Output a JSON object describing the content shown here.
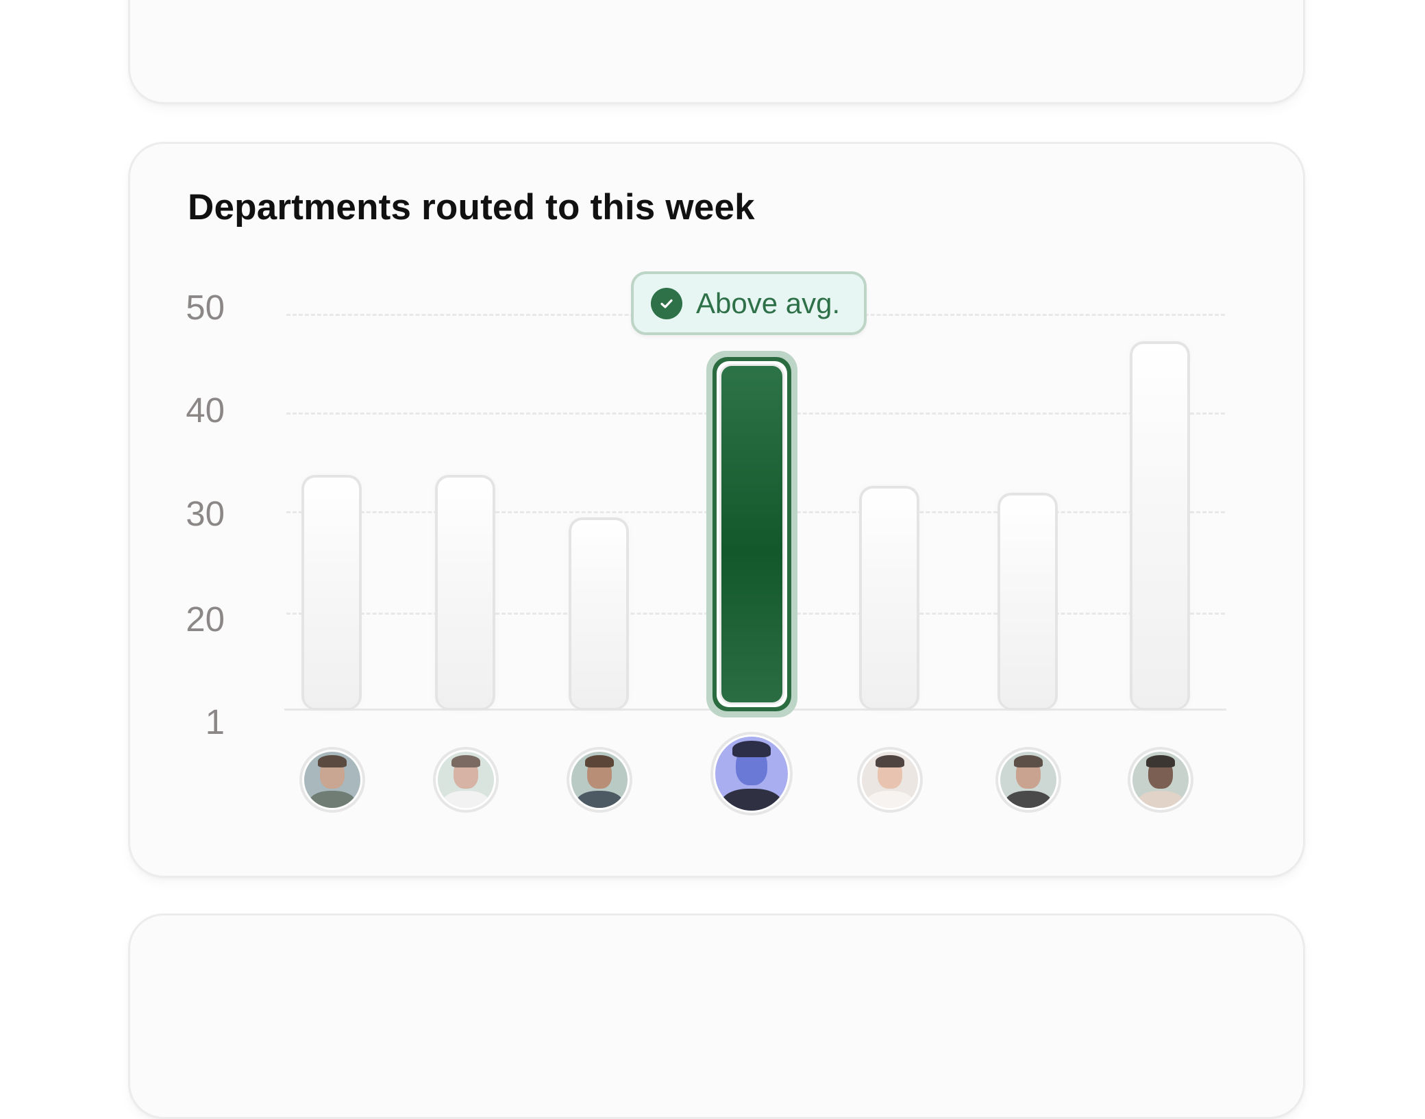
{
  "chart_card": {
    "title": "Departments routed to this week",
    "badge": {
      "label": "Above avg.",
      "icon": "check-circle-icon",
      "color": "#2e7048",
      "background": "#e7f6f2"
    }
  },
  "chart_data": {
    "type": "bar",
    "title": "Departments routed to this week",
    "xlabel": "",
    "ylabel": "",
    "categories": [
      "Person 1",
      "Person 2",
      "Person 3",
      "Person 4",
      "Person 5",
      "Person 6",
      "Person 7"
    ],
    "values": [
      33.7,
      33.7,
      29.4,
      45.6,
      32.6,
      31.9,
      47.2
    ],
    "highlighted_index": 3,
    "highlight_annotation": "Above avg.",
    "y_tick_labels": [
      "50",
      "40",
      "30",
      "20",
      "1"
    ],
    "ylim": [
      10,
      50
    ],
    "grid": true,
    "grid_style": "dashed",
    "legend": "none",
    "x_axis": "avatar images",
    "colors": {
      "default_bar": "#f4f4f4",
      "highlight_bar": "#1b6132",
      "highlight_halo": "#bcd5c6"
    }
  },
  "yaxis": {
    "ticks": [
      {
        "label": "50"
      },
      {
        "label": "40"
      },
      {
        "label": "30"
      },
      {
        "label": "20"
      },
      {
        "label": "1"
      }
    ]
  },
  "avatars": [
    {
      "name": "avatar-person-1",
      "skin": "#c9a691",
      "hair": "#5a4a40",
      "bg": "#a8b8bd",
      "shirt": "#6f7d74"
    },
    {
      "name": "avatar-person-2",
      "skin": "#d7b3a5",
      "hair": "#7a6a62",
      "bg": "#d9e4df",
      "shirt": "#f2f2f2"
    },
    {
      "name": "avatar-person-3",
      "skin": "#b98e76",
      "hair": "#5c4638",
      "bg": "#b9c9c4",
      "shirt": "#4d5a63"
    },
    {
      "name": "avatar-person-4",
      "skin": "#6a78d6",
      "hair": "#2d2f48",
      "bg": "#a9aef0",
      "shirt": "#2f3142"
    },
    {
      "name": "avatar-person-5",
      "skin": "#e8c4b0",
      "hair": "#4f4440",
      "bg": "#ece6e3",
      "shirt": "#f6f3f1"
    },
    {
      "name": "avatar-person-6",
      "skin": "#c9a390",
      "hair": "#5d5048",
      "bg": "#cdd8d5",
      "shirt": "#4a4a4a"
    },
    {
      "name": "avatar-person-7",
      "skin": "#7b5f52",
      "hair": "#3c3633",
      "bg": "#c7d2cc",
      "shirt": "#e1d3c8"
    }
  ]
}
